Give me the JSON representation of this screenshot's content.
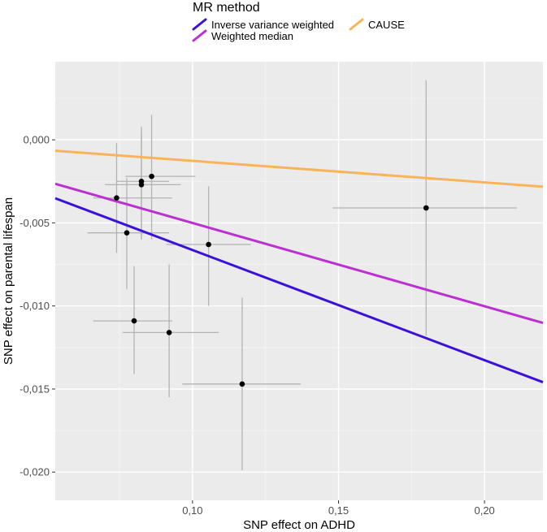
{
  "chart_data": {
    "type": "scatter",
    "title": "",
    "xlabel": "SNP effect on ADHD",
    "ylabel": "SNP effect on parental lifespan",
    "xlim": [
      0.053,
      0.22
    ],
    "ylim": [
      -0.0217,
      0.0047
    ],
    "x_ticks": [
      0.1,
      0.15,
      0.2
    ],
    "x_tick_labels": [
      "0,10",
      "0,15",
      "0,20"
    ],
    "y_ticks": [
      0.0,
      -0.005,
      -0.01,
      -0.015,
      -0.02
    ],
    "y_tick_labels": [
      "0,000",
      "-0,005",
      "-0,010",
      "-0,015",
      "-0,020"
    ],
    "grid": true,
    "legend": {
      "title": "MR method",
      "position": "top",
      "entries": [
        {
          "label": "Inverse variance weighted",
          "color": "#3b10d8"
        },
        {
          "label": "CAUSE",
          "color": "#f9b45a"
        },
        {
          "label": "Weighted median",
          "color": "#bc2fd1"
        }
      ]
    },
    "points": [
      {
        "x": 0.086,
        "y": -0.0022,
        "xlo": 0.077,
        "xhi": 0.101,
        "ylo": -0.006,
        "yhi": 0.0015
      },
      {
        "x": 0.0825,
        "y": -0.0025,
        "xlo": 0.074,
        "xhi": 0.092,
        "ylo": -0.006,
        "yhi": 0.0008
      },
      {
        "x": 0.0825,
        "y": -0.0027,
        "xlo": 0.07,
        "xhi": 0.096,
        "ylo": -0.006,
        "yhi": 0.0005
      },
      {
        "x": 0.074,
        "y": -0.0035,
        "xlo": 0.066,
        "xhi": 0.093,
        "ylo": -0.0068,
        "yhi": -0.0002
      },
      {
        "x": 0.0775,
        "y": -0.0056,
        "xlo": 0.064,
        "xhi": 0.092,
        "ylo": -0.009,
        "yhi": -0.0023
      },
      {
        "x": 0.1055,
        "y": -0.0063,
        "xlo": 0.091,
        "xhi": 0.12,
        "ylo": -0.01,
        "yhi": -0.0028
      },
      {
        "x": 0.08,
        "y": -0.0109,
        "xlo": 0.066,
        "xhi": 0.093,
        "ylo": -0.0141,
        "yhi": -0.0076
      },
      {
        "x": 0.092,
        "y": -0.0116,
        "xlo": 0.076,
        "xhi": 0.109,
        "ylo": -0.0155,
        "yhi": -0.0075
      },
      {
        "x": 0.117,
        "y": -0.0147,
        "xlo": 0.0965,
        "xhi": 0.137,
        "ylo": -0.0199,
        "yhi": -0.0095
      },
      {
        "x": 0.18,
        "y": -0.0041,
        "xlo": 0.148,
        "xhi": 0.211,
        "ylo": -0.0118,
        "yhi": 0.0036
      }
    ],
    "lines": [
      {
        "name": "Inverse variance weighted",
        "color": "#3b10d8",
        "x": [
          0.053,
          0.22
        ],
        "y": [
          -0.00352,
          -0.01459
        ]
      },
      {
        "name": "Weighted median",
        "color": "#bc2fd1",
        "x": [
          0.053,
          0.22
        ],
        "y": [
          -0.00265,
          -0.01102
        ]
      },
      {
        "name": "CAUSE",
        "color": "#f9b45a",
        "x": [
          0.053,
          0.22
        ],
        "y": [
          -0.00066,
          -0.00282
        ]
      }
    ]
  }
}
